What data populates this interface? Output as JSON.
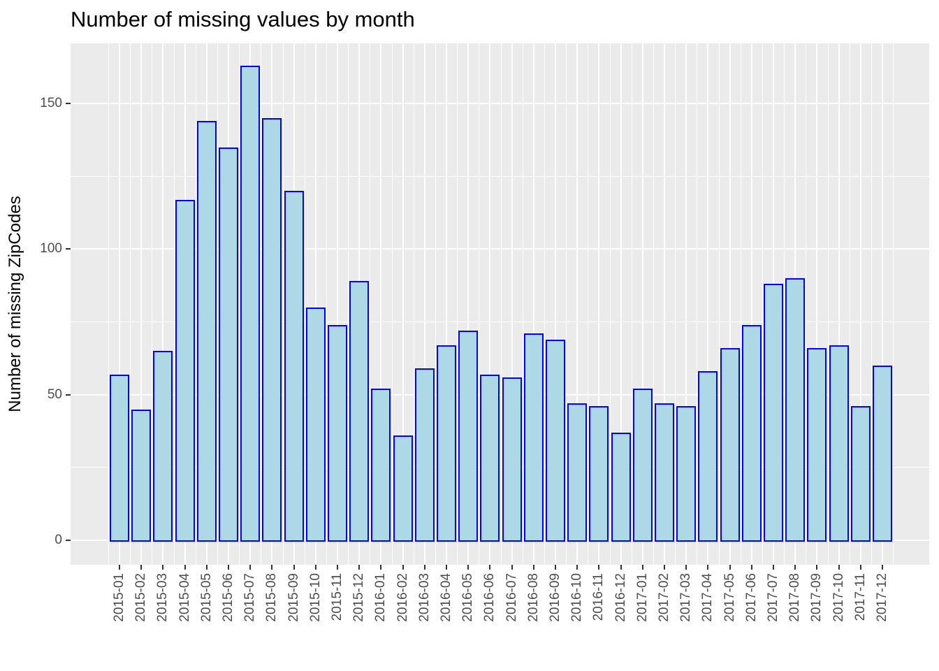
{
  "chart_data": {
    "type": "bar",
    "title": "Number of missing values by month",
    "xlabel": "",
    "ylabel": "Number of missing ZipCodes",
    "categories": [
      "2015-01",
      "2015-02",
      "2015-03",
      "2015-04",
      "2015-05",
      "2015-06",
      "2015-07",
      "2015-08",
      "2015-09",
      "2015-10",
      "2015-11",
      "2015-12",
      "2016-01",
      "2016-02",
      "2016-03",
      "2016-04",
      "2016-05",
      "2016-06",
      "2016-07",
      "2016-08",
      "2016-09",
      "2016-10",
      "2016-11",
      "2016-12",
      "2017-01",
      "2017-02",
      "2017-03",
      "2017-04",
      "2017-05",
      "2017-06",
      "2017-07",
      "2017-08",
      "2017-09",
      "2017-10",
      "2017-11",
      "2017-12"
    ],
    "values": [
      57,
      45,
      65,
      117,
      144,
      135,
      163,
      145,
      120,
      80,
      74,
      89,
      52,
      36,
      59,
      67,
      72,
      57,
      56,
      71,
      69,
      47,
      46,
      37,
      52,
      47,
      46,
      58,
      66,
      74,
      88,
      90,
      66,
      67,
      46,
      60
    ],
    "ylim": [
      0,
      170.6
    ],
    "yticks": [
      0,
      50,
      100,
      150
    ],
    "yminor": [
      25,
      75,
      125
    ],
    "grid": "on",
    "legend": "none",
    "colors": {
      "panel_bg": "#ebebeb",
      "grid": "#ffffff",
      "bar_fill": "#add8e6",
      "bar_stroke": "#0000ff",
      "tick_label": "#4d4d4d",
      "tick_mark": "#333333",
      "text": "#000000"
    }
  }
}
